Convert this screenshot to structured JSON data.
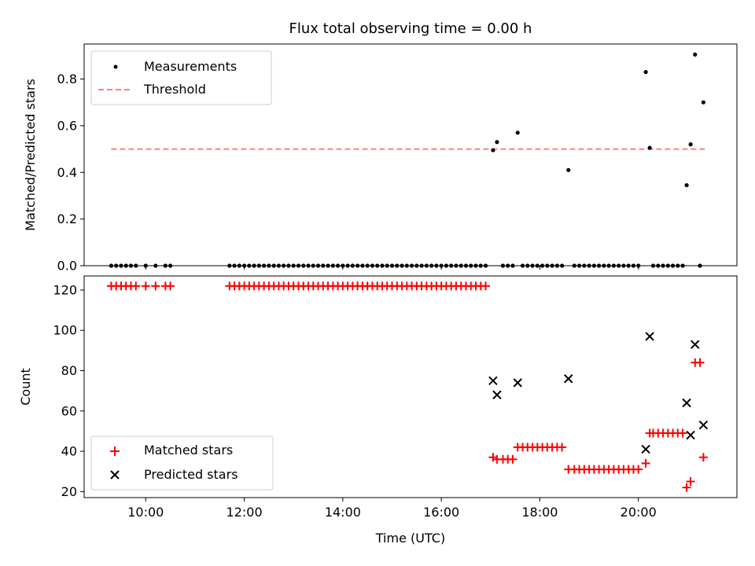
{
  "chart_data": [
    {
      "type": "scatter",
      "title": "Flux total observing time = 0.00 h",
      "xlabel": "",
      "ylabel": "Matched/Predicted stars",
      "xlim": [
        8.75,
        22.0
      ],
      "ylim": [
        0.0,
        0.95
      ],
      "yticks": [
        0.0,
        0.2,
        0.4,
        0.6,
        0.8
      ],
      "ytick_labels": [
        "0.0",
        "0.2",
        "0.4",
        "0.6",
        "0.8"
      ],
      "legend": {
        "position": "top-left",
        "entries": [
          "Measurements",
          "Threshold"
        ]
      },
      "threshold": {
        "name": "Threshold",
        "y": 0.5,
        "x_range": [
          9.3,
          21.35
        ],
        "color": "#ff7f7f"
      },
      "series": [
        {
          "name": "Measurements",
          "color": "#000000",
          "points": [
            [
              9.3,
              0
            ],
            [
              9.4,
              0
            ],
            [
              9.5,
              0
            ],
            [
              9.6,
              0
            ],
            [
              9.7,
              0
            ],
            [
              9.8,
              0
            ],
            [
              10.0,
              0
            ],
            [
              10.2,
              0
            ],
            [
              10.4,
              0
            ],
            [
              10.5,
              0
            ],
            [
              11.7,
              0
            ],
            [
              11.8,
              0
            ],
            [
              11.9,
              0
            ],
            [
              12.0,
              0
            ],
            [
              12.1,
              0
            ],
            [
              12.2,
              0
            ],
            [
              12.3,
              0
            ],
            [
              12.4,
              0
            ],
            [
              12.5,
              0
            ],
            [
              12.6,
              0
            ],
            [
              12.7,
              0
            ],
            [
              12.8,
              0
            ],
            [
              12.9,
              0
            ],
            [
              13.0,
              0
            ],
            [
              13.1,
              0
            ],
            [
              13.2,
              0
            ],
            [
              13.3,
              0
            ],
            [
              13.4,
              0
            ],
            [
              13.5,
              0
            ],
            [
              13.6,
              0
            ],
            [
              13.7,
              0
            ],
            [
              13.8,
              0
            ],
            [
              13.9,
              0
            ],
            [
              14.0,
              0
            ],
            [
              14.1,
              0
            ],
            [
              14.2,
              0
            ],
            [
              14.3,
              0
            ],
            [
              14.4,
              0
            ],
            [
              14.5,
              0
            ],
            [
              14.6,
              0
            ],
            [
              14.7,
              0
            ],
            [
              14.8,
              0
            ],
            [
              14.9,
              0
            ],
            [
              15.0,
              0
            ],
            [
              15.1,
              0
            ],
            [
              15.2,
              0
            ],
            [
              15.3,
              0
            ],
            [
              15.4,
              0
            ],
            [
              15.5,
              0
            ],
            [
              15.6,
              0
            ],
            [
              15.7,
              0
            ],
            [
              15.8,
              0
            ],
            [
              15.9,
              0
            ],
            [
              16.0,
              0
            ],
            [
              16.1,
              0
            ],
            [
              16.2,
              0
            ],
            [
              16.3,
              0
            ],
            [
              16.4,
              0
            ],
            [
              16.5,
              0
            ],
            [
              16.6,
              0
            ],
            [
              16.7,
              0
            ],
            [
              16.8,
              0
            ],
            [
              16.9,
              0
            ],
            [
              17.05,
              0.495
            ],
            [
              17.13,
              0.53
            ],
            [
              17.25,
              0
            ],
            [
              17.35,
              0
            ],
            [
              17.45,
              0
            ],
            [
              17.55,
              0.57
            ],
            [
              17.65,
              0
            ],
            [
              17.75,
              0
            ],
            [
              17.85,
              0
            ],
            [
              17.95,
              0
            ],
            [
              18.05,
              0
            ],
            [
              18.15,
              0
            ],
            [
              18.25,
              0
            ],
            [
              18.35,
              0
            ],
            [
              18.45,
              0
            ],
            [
              18.58,
              0.41
            ],
            [
              18.7,
              0
            ],
            [
              18.8,
              0
            ],
            [
              18.9,
              0
            ],
            [
              19.0,
              0
            ],
            [
              19.1,
              0
            ],
            [
              19.2,
              0
            ],
            [
              19.3,
              0
            ],
            [
              19.4,
              0
            ],
            [
              19.5,
              0
            ],
            [
              19.6,
              0
            ],
            [
              19.7,
              0
            ],
            [
              19.8,
              0
            ],
            [
              19.9,
              0
            ],
            [
              20.0,
              0
            ],
            [
              20.15,
              0.83
            ],
            [
              20.23,
              0.505
            ],
            [
              20.3,
              0
            ],
            [
              20.4,
              0
            ],
            [
              20.5,
              0
            ],
            [
              20.6,
              0
            ],
            [
              20.7,
              0
            ],
            [
              20.8,
              0
            ],
            [
              20.9,
              0
            ],
            [
              20.98,
              0.345
            ],
            [
              21.06,
              0.52
            ],
            [
              21.15,
              0.905
            ],
            [
              21.25,
              0
            ],
            [
              21.32,
              0.7
            ]
          ]
        }
      ]
    },
    {
      "type": "scatter",
      "title": "",
      "xlabel": "Time (UTC)",
      "ylabel": "Count",
      "xlim": [
        8.75,
        22.0
      ],
      "ylim": [
        17.0,
        127.0
      ],
      "yticks": [
        20,
        40,
        60,
        80,
        100,
        120
      ],
      "ytick_labels": [
        "20",
        "40",
        "60",
        "80",
        "100",
        "120"
      ],
      "xticks": [
        10,
        12,
        14,
        16,
        18,
        20
      ],
      "xtick_labels": [
        "10:00",
        "12:00",
        "14:00",
        "16:00",
        "18:00",
        "20:00"
      ],
      "legend": {
        "position": "bottom-left",
        "entries": [
          "Matched stars",
          "Predicted stars"
        ]
      },
      "series": [
        {
          "name": "Matched stars",
          "marker": "+",
          "color": "#ff0000",
          "points": [
            [
              9.3,
              122
            ],
            [
              9.4,
              122
            ],
            [
              9.5,
              122
            ],
            [
              9.6,
              122
            ],
            [
              9.7,
              122
            ],
            [
              9.8,
              122
            ],
            [
              10.0,
              122
            ],
            [
              10.2,
              122
            ],
            [
              10.4,
              122
            ],
            [
              10.5,
              122
            ],
            [
              11.7,
              122
            ],
            [
              11.8,
              122
            ],
            [
              11.9,
              122
            ],
            [
              12.0,
              122
            ],
            [
              12.1,
              122
            ],
            [
              12.2,
              122
            ],
            [
              12.3,
              122
            ],
            [
              12.4,
              122
            ],
            [
              12.5,
              122
            ],
            [
              12.6,
              122
            ],
            [
              12.7,
              122
            ],
            [
              12.8,
              122
            ],
            [
              12.9,
              122
            ],
            [
              13.0,
              122
            ],
            [
              13.1,
              122
            ],
            [
              13.2,
              122
            ],
            [
              13.3,
              122
            ],
            [
              13.4,
              122
            ],
            [
              13.5,
              122
            ],
            [
              13.6,
              122
            ],
            [
              13.7,
              122
            ],
            [
              13.8,
              122
            ],
            [
              13.9,
              122
            ],
            [
              14.0,
              122
            ],
            [
              14.1,
              122
            ],
            [
              14.2,
              122
            ],
            [
              14.3,
              122
            ],
            [
              14.4,
              122
            ],
            [
              14.5,
              122
            ],
            [
              14.6,
              122
            ],
            [
              14.7,
              122
            ],
            [
              14.8,
              122
            ],
            [
              14.9,
              122
            ],
            [
              15.0,
              122
            ],
            [
              15.1,
              122
            ],
            [
              15.2,
              122
            ],
            [
              15.3,
              122
            ],
            [
              15.4,
              122
            ],
            [
              15.5,
              122
            ],
            [
              15.6,
              122
            ],
            [
              15.7,
              122
            ],
            [
              15.8,
              122
            ],
            [
              15.9,
              122
            ],
            [
              16.0,
              122
            ],
            [
              16.1,
              122
            ],
            [
              16.2,
              122
            ],
            [
              16.3,
              122
            ],
            [
              16.4,
              122
            ],
            [
              16.5,
              122
            ],
            [
              16.6,
              122
            ],
            [
              16.7,
              122
            ],
            [
              16.8,
              122
            ],
            [
              16.9,
              122
            ],
            [
              17.05,
              37
            ],
            [
              17.13,
              36
            ],
            [
              17.25,
              36
            ],
            [
              17.35,
              36
            ],
            [
              17.45,
              36
            ],
            [
              17.55,
              42
            ],
            [
              17.65,
              42
            ],
            [
              17.75,
              42
            ],
            [
              17.85,
              42
            ],
            [
              17.95,
              42
            ],
            [
              18.05,
              42
            ],
            [
              18.15,
              42
            ],
            [
              18.25,
              42
            ],
            [
              18.35,
              42
            ],
            [
              18.45,
              42
            ],
            [
              18.58,
              31
            ],
            [
              18.7,
              31
            ],
            [
              18.8,
              31
            ],
            [
              18.9,
              31
            ],
            [
              19.0,
              31
            ],
            [
              19.1,
              31
            ],
            [
              19.2,
              31
            ],
            [
              19.3,
              31
            ],
            [
              19.4,
              31
            ],
            [
              19.5,
              31
            ],
            [
              19.6,
              31
            ],
            [
              19.7,
              31
            ],
            [
              19.8,
              31
            ],
            [
              19.9,
              31
            ],
            [
              20.0,
              31
            ],
            [
              20.15,
              34
            ],
            [
              20.23,
              49
            ],
            [
              20.3,
              49
            ],
            [
              20.4,
              49
            ],
            [
              20.5,
              49
            ],
            [
              20.6,
              49
            ],
            [
              20.7,
              49
            ],
            [
              20.8,
              49
            ],
            [
              20.9,
              49
            ],
            [
              20.98,
              22
            ],
            [
              21.06,
              25
            ],
            [
              21.15,
              84
            ],
            [
              21.25,
              84
            ],
            [
              21.32,
              37
            ]
          ]
        },
        {
          "name": "Predicted stars",
          "marker": "x",
          "color": "#000000",
          "points": [
            [
              17.05,
              75
            ],
            [
              17.13,
              68
            ],
            [
              17.55,
              74
            ],
            [
              18.58,
              76
            ],
            [
              20.15,
              41
            ],
            [
              20.23,
              97
            ],
            [
              20.98,
              64
            ],
            [
              21.06,
              48
            ],
            [
              21.15,
              93
            ],
            [
              21.32,
              53
            ]
          ]
        }
      ]
    }
  ]
}
